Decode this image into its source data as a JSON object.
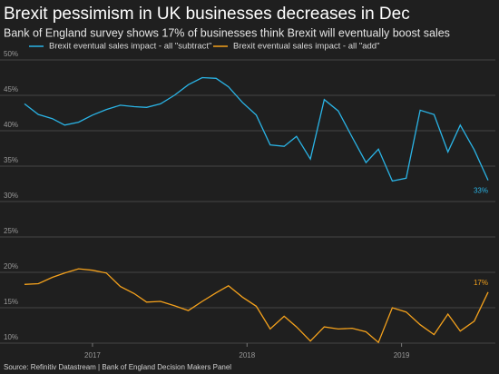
{
  "chart_data": {
    "type": "line",
    "title": "Brexit pessimism in UK businesses decreases in Dec",
    "subtitle": "Bank of England survey shows 17% of businesses think Brexit will eventually boost sales",
    "source": "Source: Refinitiv Datastream | Bank of England Decision Makers Panel",
    "x": [
      2016.56,
      2016.65,
      2016.74,
      2016.82,
      2016.91,
      2017.0,
      2017.09,
      2017.18,
      2017.27,
      2017.35,
      2017.44,
      2017.53,
      2017.62,
      2017.71,
      2017.8,
      2017.88,
      2017.97,
      2018.06,
      2018.15,
      2018.24,
      2018.32,
      2018.41,
      2018.5,
      2018.59,
      2018.68,
      2018.77,
      2018.85,
      2018.94,
      2019.03,
      2019.12,
      2019.21,
      2019.3,
      2019.38,
      2019.47,
      2019.56
    ],
    "series": [
      {
        "name": "Brexit eventual sales impact - all \"subtract\"",
        "color": "#2ab4e6",
        "values": [
          43.8,
          42.3,
          41.7,
          40.8,
          41.2,
          42.2,
          43,
          43.6,
          43.4,
          43.3,
          43.8,
          45,
          46.5,
          47.5,
          47.4,
          46.2,
          44,
          42.2,
          38,
          37.8,
          39.2,
          36,
          44.4,
          42.8,
          39.1,
          35.5,
          37.4,
          32.9,
          33.3,
          42.9,
          42.3,
          37,
          40.8,
          37.3,
          33
        ],
        "end_label": "33%"
      },
      {
        "name": "Brexit eventual sales impact - all \"add\"",
        "color": "#f4a11c",
        "values": [
          18.3,
          18.4,
          19.3,
          19.9,
          20.5,
          20.3,
          19.9,
          18,
          17,
          15.8,
          15.9,
          15.3,
          14.6,
          15.9,
          17.1,
          18.1,
          16.5,
          15.2,
          12,
          13.8,
          12.3,
          10.3,
          12.3,
          12,
          12.1,
          11.6,
          10.1,
          15,
          14.4,
          12.6,
          11.2,
          14.1,
          11.7,
          13.1,
          17.2
        ],
        "end_label": "17%"
      }
    ],
    "xlim": [
      2016.56,
      2019.56
    ],
    "xticks": [
      2017,
      2018,
      2019
    ],
    "ylim": [
      10,
      50
    ],
    "yticks": [
      {
        "value": 10,
        "label": "10%"
      },
      {
        "value": 15,
        "label": "15%"
      },
      {
        "value": 20,
        "label": "20%"
      },
      {
        "value": 25,
        "label": "25%"
      },
      {
        "value": 30,
        "label": "30%"
      },
      {
        "value": 35,
        "label": "35%"
      },
      {
        "value": 40,
        "label": "40%"
      },
      {
        "value": 45,
        "label": "45%"
      },
      {
        "value": 50,
        "label": "50%"
      }
    ],
    "grid": true
  }
}
